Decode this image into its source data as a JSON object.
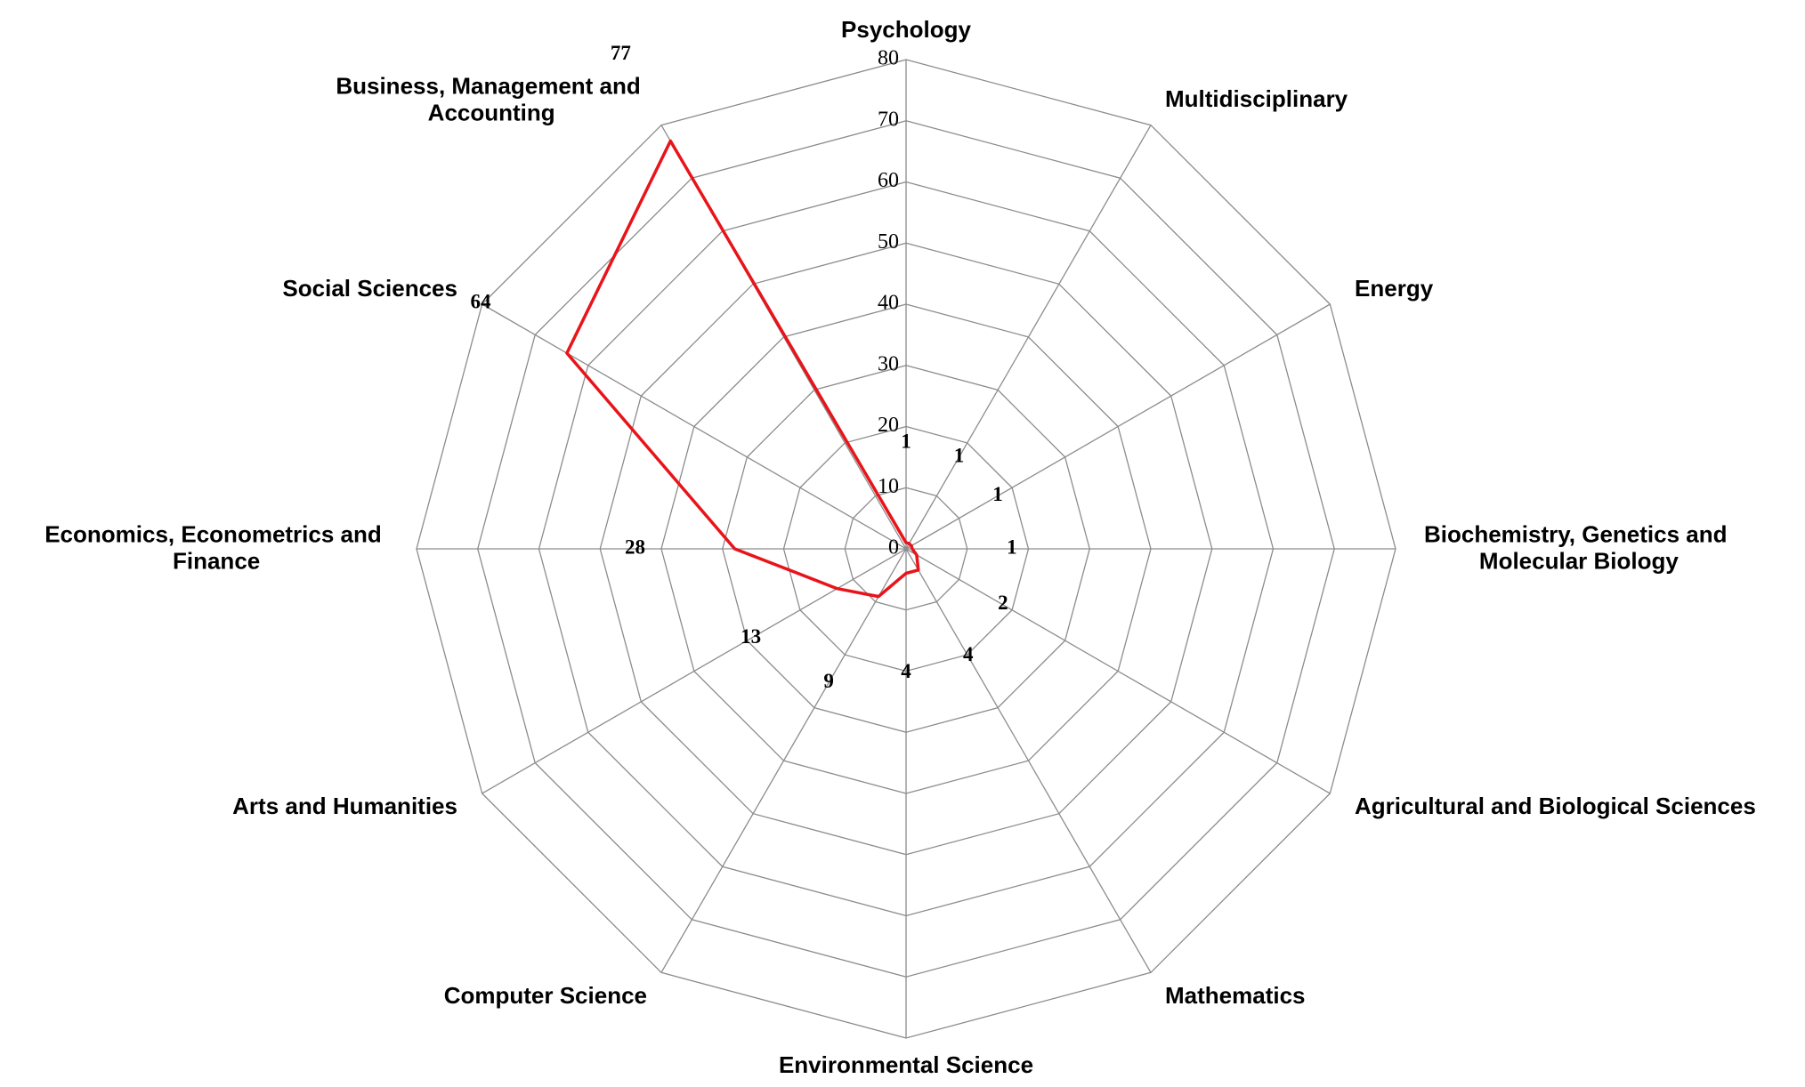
{
  "chart_data": {
    "type": "radar",
    "categories": [
      "Psychology",
      "Multidisciplinary",
      "Energy",
      "Biochemistry, Genetics and Molecular Biology",
      "Agricultural and Biological Sciences",
      "Mathematics",
      "Environmental Science",
      "Computer Science",
      "Arts and Humanities",
      "Economics, Econometrics and Finance",
      "Social Sciences",
      "Business, Management and Accounting"
    ],
    "values": [
      1,
      1,
      1,
      1,
      2,
      4,
      4,
      9,
      13,
      28,
      64,
      77
    ],
    "color": "#e8141a",
    "ylim": [
      0,
      80
    ],
    "yticks": [
      0,
      10,
      20,
      30,
      40,
      50,
      60,
      70,
      80
    ],
    "grid": true
  }
}
